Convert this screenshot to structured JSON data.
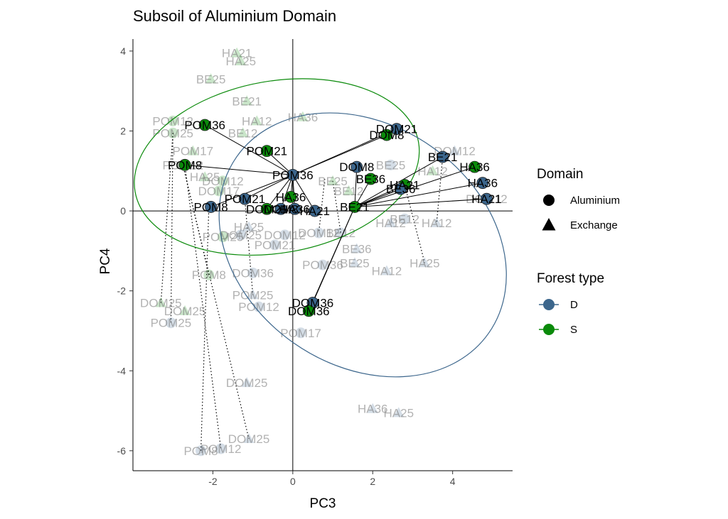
{
  "chart_data": {
    "type": "scatter",
    "title": "Subsoil of Aluminium Domain",
    "xlabel": "PC3",
    "ylabel": "PC4",
    "xlim": [
      -4.0,
      5.5
    ],
    "ylim": [
      -6.5,
      4.3
    ],
    "x_ticks": [
      -2,
      0,
      2,
      4
    ],
    "y_ticks": [
      -6,
      -4,
      -2,
      0,
      2,
      4
    ],
    "x_tick_labels": [
      "-2",
      "0",
      "2",
      "4"
    ],
    "y_tick_labels": [
      "-6",
      "-4",
      "-2",
      "0",
      "2",
      "4"
    ],
    "grid": false,
    "reference_lines": {
      "x": 0,
      "y": 0
    },
    "colors": {
      "D": "#3c668c",
      "S": "#0a8a0a"
    },
    "legend": {
      "placement": "right",
      "domain_title": "Domain",
      "domain_entries": [
        {
          "label": "Aluminium",
          "shape": "circle"
        },
        {
          "label": "Exchange",
          "shape": "triangle"
        }
      ],
      "forest_title": "Forest type",
      "forest_entries": [
        {
          "label": "D",
          "color": "#3c668c"
        },
        {
          "label": "S",
          "color": "#0a8a0a"
        }
      ]
    },
    "ellipses": [
      {
        "group": "S",
        "center": [
          -0.4,
          1.1
        ],
        "rx": 3.6,
        "ry": 2.15,
        "angle": -10
      },
      {
        "group": "D",
        "center": [
          1.75,
          -0.85
        ],
        "rx": 3.85,
        "ry": 3.0,
        "angle": 35
      }
    ],
    "centroids": [
      {
        "group": "S",
        "x": -0.1,
        "y": 0.9
      },
      {
        "group": "D",
        "x": 1.55,
        "y": 0.1
      }
    ],
    "primary_points": [
      {
        "label": "POM36",
        "x": -2.2,
        "y": 2.15,
        "group": "S"
      },
      {
        "label": "POM21",
        "x": -0.65,
        "y": 1.5,
        "group": "S"
      },
      {
        "label": "POM8",
        "x": -2.7,
        "y": 1.15,
        "group": "S"
      },
      {
        "label": "POM36",
        "x": 0.0,
        "y": 0.9,
        "group": "D"
      },
      {
        "label": "POM21",
        "x": -1.2,
        "y": 0.3,
        "group": "D"
      },
      {
        "label": "POM8",
        "x": -2.05,
        "y": 0.1,
        "group": "D"
      },
      {
        "label": "HA36",
        "x": -0.05,
        "y": 0.35,
        "group": "S"
      },
      {
        "label": "DOM21",
        "x": -0.65,
        "y": 0.05,
        "group": "S"
      },
      {
        "label": "DOM8",
        "x": -0.3,
        "y": 0.05,
        "group": "D"
      },
      {
        "label": "HA36",
        "x": 0.05,
        "y": 0.05,
        "group": "D"
      },
      {
        "label": "HA21",
        "x": 0.55,
        "y": 0.0,
        "group": "D"
      },
      {
        "label": "DOM21",
        "x": 2.6,
        "y": 2.05,
        "group": "D"
      },
      {
        "label": "DOM8",
        "x": 2.35,
        "y": 1.9,
        "group": "S"
      },
      {
        "label": "DOM8",
        "x": 1.6,
        "y": 1.1,
        "group": "D"
      },
      {
        "label": "BE36",
        "x": 1.95,
        "y": 0.8,
        "group": "S"
      },
      {
        "label": "HA21",
        "x": 2.8,
        "y": 0.65,
        "group": "S"
      },
      {
        "label": "BE36",
        "x": 2.7,
        "y": 0.55,
        "group": "D"
      },
      {
        "label": "BE21",
        "x": 1.55,
        "y": 0.1,
        "group": "S"
      },
      {
        "label": "BE21",
        "x": 3.75,
        "y": 1.35,
        "group": "D"
      },
      {
        "label": "HA36",
        "x": 4.55,
        "y": 1.1,
        "group": "S"
      },
      {
        "label": "HA36",
        "x": 4.75,
        "y": 0.7,
        "group": "D"
      },
      {
        "label": "HA21",
        "x": 4.85,
        "y": 0.3,
        "group": "D"
      },
      {
        "label": "DOM36",
        "x": 0.5,
        "y": -2.3,
        "group": "D"
      },
      {
        "label": "DOM36",
        "x": 0.4,
        "y": -2.5,
        "group": "S"
      }
    ],
    "segments": [
      {
        "from": 0,
        "to": 3
      },
      {
        "from": 1,
        "to": 3
      },
      {
        "from": 2,
        "to": 3
      },
      {
        "from": 4,
        "to": 3
      },
      {
        "from": 5,
        "to": 3
      },
      {
        "from": 6,
        "to": 3
      },
      {
        "from": 7,
        "to": 3
      },
      {
        "from": 8,
        "to": 3
      },
      {
        "from": 9,
        "to": 3
      },
      {
        "from": 10,
        "to": 3
      },
      {
        "from": 11,
        "to": 3
      },
      {
        "from": 12,
        "to": 3
      },
      {
        "from": 13,
        "to": 17
      },
      {
        "from": 14,
        "to": 17
      },
      {
        "from": 15,
        "to": 17
      },
      {
        "from": 16,
        "to": 17
      },
      {
        "from": 18,
        "to": 17
      },
      {
        "from": 19,
        "to": 17
      },
      {
        "from": 20,
        "to": 17
      },
      {
        "from": 21,
        "to": 17
      },
      {
        "from": 22,
        "to": 17
      },
      {
        "from": 23,
        "to": 17
      }
    ],
    "faded_points": [
      {
        "label": "HA21",
        "x": -1.4,
        "y": 3.95,
        "group": "S",
        "shape": "triangle"
      },
      {
        "label": "HA25",
        "x": -1.3,
        "y": 3.75,
        "group": "S",
        "shape": "triangle"
      },
      {
        "label": "BE25",
        "x": -2.05,
        "y": 3.3,
        "group": "S",
        "shape": "triangle"
      },
      {
        "label": "BE21",
        "x": -1.15,
        "y": 2.75,
        "group": "S",
        "shape": "triangle"
      },
      {
        "label": "HA36",
        "x": 0.25,
        "y": 2.35,
        "group": "S",
        "shape": "triangle"
      },
      {
        "label": "HA12",
        "x": -0.9,
        "y": 2.25,
        "group": "S",
        "shape": "triangle"
      },
      {
        "label": "POM12",
        "x": -3.0,
        "y": 2.25,
        "group": "S",
        "shape": "circle"
      },
      {
        "label": "POM25",
        "x": -3.0,
        "y": 1.95,
        "group": "S",
        "shape": "circle"
      },
      {
        "label": "BE12",
        "x": -1.25,
        "y": 1.95,
        "group": "S",
        "shape": "triangle"
      },
      {
        "label": "POM17",
        "x": -2.5,
        "y": 1.5,
        "group": "S",
        "shape": "triangle"
      },
      {
        "label": "POM12",
        "x": -2.75,
        "y": 1.15,
        "group": "S",
        "shape": "circle"
      },
      {
        "label": "HA25",
        "x": -2.2,
        "y": 0.85,
        "group": "S",
        "shape": "triangle"
      },
      {
        "label": "DOM12",
        "x": -1.75,
        "y": 0.75,
        "group": "S",
        "shape": "circle"
      },
      {
        "label": "DOM17",
        "x": -1.85,
        "y": 0.5,
        "group": "S",
        "shape": "circle"
      },
      {
        "label": "BE25",
        "x": 1.0,
        "y": 0.75,
        "group": "S",
        "shape": "triangle"
      },
      {
        "label": "BE12",
        "x": 1.4,
        "y": 0.5,
        "group": "S",
        "shape": "triangle"
      },
      {
        "label": "DOM12",
        "x": 4.05,
        "y": 1.5,
        "group": "D",
        "shape": "triangle"
      },
      {
        "label": "HA12",
        "x": 3.5,
        "y": 1.0,
        "group": "S",
        "shape": "triangle"
      },
      {
        "label": "BE25",
        "x": 2.45,
        "y": 1.15,
        "group": "D",
        "shape": "circle"
      },
      {
        "label": "DOM12",
        "x": 4.85,
        "y": 0.3,
        "group": "D",
        "shape": "triangle"
      },
      {
        "label": "BE12",
        "x": 2.8,
        "y": -0.2,
        "group": "D",
        "shape": "circle"
      },
      {
        "label": "HA12",
        "x": 2.45,
        "y": -0.3,
        "group": "D",
        "shape": "triangle"
      },
      {
        "label": "HA12",
        "x": 3.6,
        "y": -0.3,
        "group": "D",
        "shape": "triangle"
      },
      {
        "label": "HA25",
        "x": -1.1,
        "y": -0.4,
        "group": "D",
        "shape": "triangle"
      },
      {
        "label": "DOM25",
        "x": -1.3,
        "y": -0.6,
        "group": "D",
        "shape": "circle"
      },
      {
        "label": "POM25",
        "x": -1.75,
        "y": -0.65,
        "group": "S",
        "shape": "circle"
      },
      {
        "label": "DOM12",
        "x": -0.2,
        "y": -0.6,
        "group": "D",
        "shape": "circle"
      },
      {
        "label": "DOM12",
        "x": 0.65,
        "y": -0.55,
        "group": "D",
        "shape": "circle"
      },
      {
        "label": "BE12",
        "x": 1.2,
        "y": -0.55,
        "group": "D",
        "shape": "circle"
      },
      {
        "label": "POM21",
        "x": -0.45,
        "y": -0.85,
        "group": "D",
        "shape": "circle"
      },
      {
        "label": "BE36",
        "x": 1.6,
        "y": -0.95,
        "group": "D",
        "shape": "triangle"
      },
      {
        "label": "POM36",
        "x": 0.75,
        "y": -1.35,
        "group": "D",
        "shape": "circle"
      },
      {
        "label": "BE25",
        "x": 1.55,
        "y": -1.3,
        "group": "D",
        "shape": "triangle"
      },
      {
        "label": "HA25",
        "x": 3.3,
        "y": -1.3,
        "group": "D",
        "shape": "triangle"
      },
      {
        "label": "HA12",
        "x": 2.35,
        "y": -1.5,
        "group": "D",
        "shape": "triangle"
      },
      {
        "label": "POM8",
        "x": -2.1,
        "y": -1.6,
        "group": "S",
        "shape": "circle"
      },
      {
        "label": "DOM36",
        "x": -1.0,
        "y": -1.55,
        "group": "D",
        "shape": "circle"
      },
      {
        "label": "POM25",
        "x": -1.0,
        "y": -2.1,
        "group": "D",
        "shape": "triangle"
      },
      {
        "label": "POM12",
        "x": -0.85,
        "y": -2.4,
        "group": "D",
        "shape": "circle"
      },
      {
        "label": "DOM25",
        "x": -3.3,
        "y": -2.3,
        "group": "S",
        "shape": "triangle"
      },
      {
        "label": "DOM25",
        "x": -2.7,
        "y": -2.5,
        "group": "S",
        "shape": "triangle"
      },
      {
        "label": "POM25",
        "x": -3.05,
        "y": -2.8,
        "group": "D",
        "shape": "circle"
      },
      {
        "label": "POM17",
        "x": 0.2,
        "y": -3.05,
        "group": "D",
        "shape": "circle"
      },
      {
        "label": "DOM25",
        "x": -1.15,
        "y": -4.3,
        "group": "D",
        "shape": "triangle"
      },
      {
        "label": "HA36",
        "x": 2.0,
        "y": -4.95,
        "group": "D",
        "shape": "triangle"
      },
      {
        "label": "HA25",
        "x": 2.65,
        "y": -5.05,
        "group": "D",
        "shape": "triangle"
      },
      {
        "label": "DOM25",
        "x": -1.1,
        "y": -5.7,
        "group": "D",
        "shape": "triangle"
      },
      {
        "label": "POM12",
        "x": -1.8,
        "y": -5.95,
        "group": "D",
        "shape": "circle"
      },
      {
        "label": "POM8",
        "x": -2.3,
        "y": -6.0,
        "group": "D",
        "shape": "circle"
      }
    ],
    "dotted_links": [
      {
        "from": [
          -3.0,
          1.95
        ],
        "to": [
          -3.05,
          -2.8
        ]
      },
      {
        "from": [
          -2.7,
          1.15
        ],
        "to": [
          -1.8,
          -5.95
        ]
      },
      {
        "from": [
          -2.75,
          1.15
        ],
        "to": [
          -1.1,
          -5.7
        ]
      },
      {
        "from": [
          -2.1,
          0.1
        ],
        "to": [
          -2.3,
          -6.0
        ]
      },
      {
        "from": [
          -3.0,
          1.95
        ],
        "to": [
          -3.3,
          -2.3
        ]
      },
      {
        "from": [
          -2.75,
          1.15
        ],
        "to": [
          -2.1,
          -1.6
        ]
      },
      {
        "from": [
          -1.2,
          0.3
        ],
        "to": [
          -1.0,
          -2.1
        ]
      },
      {
        "from": [
          3.75,
          1.35
        ],
        "to": [
          3.6,
          -0.3
        ]
      },
      {
        "from": [
          2.8,
          0.65
        ],
        "to": [
          3.3,
          -1.3
        ]
      },
      {
        "from": [
          1.0,
          0.75
        ],
        "to": [
          1.2,
          -0.55
        ]
      },
      {
        "from": [
          0.8,
          0.8
        ],
        "to": [
          0.65,
          -0.55
        ]
      }
    ]
  }
}
